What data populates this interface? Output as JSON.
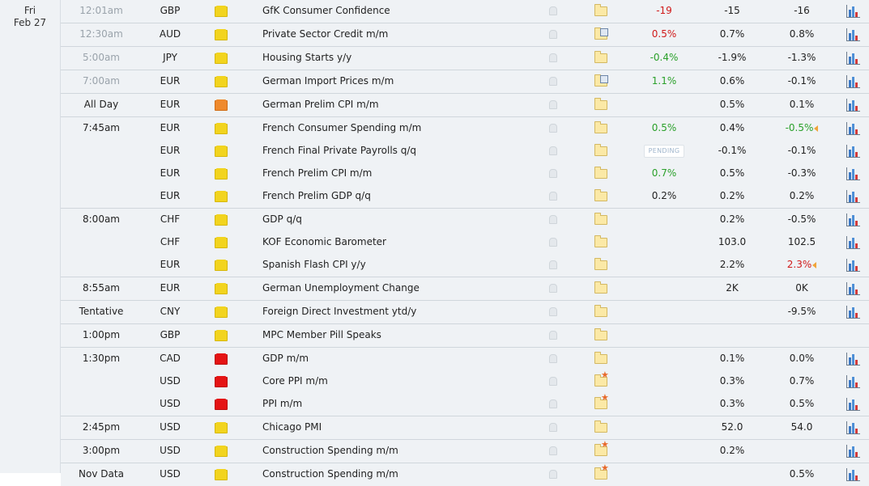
{
  "date": {
    "day": "Fri",
    "date": "Feb 27"
  },
  "colors": {
    "positive": "#2aa02a",
    "negative": "#d01a1a",
    "pending_text": "#9fb5cc",
    "background": "#eff2f5"
  },
  "events": [
    {
      "time": "12:01am",
      "time_past": true,
      "currency": "GBP",
      "impact": "low",
      "event": "GfK Consumer Confidence",
      "note_icon": "folder-icon",
      "actual": "-19",
      "actual_color": "red",
      "forecast": "-15",
      "previous": "-16",
      "previous_color": "dark",
      "revised": false,
      "separator": false
    },
    {
      "time": "12:30am",
      "time_past": true,
      "currency": "AUD",
      "impact": "low",
      "event": "Private Sector Credit m/m",
      "note_icon": "folder-doc-icon",
      "actual": "0.5%",
      "actual_color": "red",
      "forecast": "0.7%",
      "previous": "0.8%",
      "previous_color": "dark",
      "revised": false,
      "separator": true
    },
    {
      "time": "5:00am",
      "time_past": true,
      "currency": "JPY",
      "impact": "low",
      "event": "Housing Starts y/y",
      "note_icon": "folder-icon",
      "actual": "-0.4%",
      "actual_color": "green",
      "forecast": "-1.9%",
      "previous": "-1.3%",
      "previous_color": "dark",
      "revised": false,
      "separator": true
    },
    {
      "time": "7:00am",
      "time_past": true,
      "currency": "EUR",
      "impact": "low",
      "event": "German Import Prices m/m",
      "note_icon": "folder-doc-icon",
      "actual": "1.1%",
      "actual_color": "green",
      "forecast": "0.6%",
      "previous": "-0.1%",
      "previous_color": "dark",
      "revised": false,
      "separator": true
    },
    {
      "time": "All Day",
      "time_past": false,
      "currency": "EUR",
      "impact": "medium",
      "event": "German Prelim CPI m/m",
      "note_icon": "folder-icon",
      "actual": "",
      "actual_color": "dark",
      "forecast": "0.5%",
      "previous": "0.1%",
      "previous_color": "dark",
      "revised": false,
      "separator": true
    },
    {
      "time": "7:45am",
      "time_past": false,
      "currency": "EUR",
      "impact": "low",
      "event": "French Consumer Spending m/m",
      "note_icon": "folder-icon",
      "actual": "0.5%",
      "actual_color": "green",
      "forecast": "0.4%",
      "previous": "-0.5%",
      "previous_color": "green",
      "revised": true,
      "separator": true
    },
    {
      "time": "",
      "time_past": false,
      "currency": "EUR",
      "impact": "low",
      "event": "French Final Private Payrolls q/q",
      "note_icon": "folder-icon",
      "actual": "",
      "actual_color": "dark",
      "pending": "PENDING",
      "forecast": "-0.1%",
      "previous": "-0.1%",
      "previous_color": "dark",
      "revised": false,
      "separator": false
    },
    {
      "time": "",
      "time_past": false,
      "currency": "EUR",
      "impact": "low",
      "event": "French Prelim CPI m/m",
      "note_icon": "folder-icon",
      "actual": "0.7%",
      "actual_color": "green",
      "forecast": "0.5%",
      "previous": "-0.3%",
      "previous_color": "dark",
      "revised": false,
      "separator": false
    },
    {
      "time": "",
      "time_past": false,
      "currency": "EUR",
      "impact": "low",
      "event": "French Prelim GDP q/q",
      "note_icon": "folder-icon",
      "actual": "0.2%",
      "actual_color": "dark",
      "forecast": "0.2%",
      "previous": "0.2%",
      "previous_color": "dark",
      "revised": false,
      "separator": false
    },
    {
      "time": "8:00am",
      "time_past": false,
      "currency": "CHF",
      "impact": "low",
      "event": "GDP q/q",
      "note_icon": "folder-icon",
      "actual": "",
      "actual_color": "dark",
      "forecast": "0.2%",
      "previous": "-0.5%",
      "previous_color": "dark",
      "revised": false,
      "separator": true
    },
    {
      "time": "",
      "time_past": false,
      "currency": "CHF",
      "impact": "low",
      "event": "KOF Economic Barometer",
      "note_icon": "folder-icon",
      "actual": "",
      "actual_color": "dark",
      "forecast": "103.0",
      "previous": "102.5",
      "previous_color": "dark",
      "revised": false,
      "separator": false
    },
    {
      "time": "",
      "time_past": false,
      "currency": "EUR",
      "impact": "low",
      "event": "Spanish Flash CPI y/y",
      "note_icon": "folder-icon",
      "actual": "",
      "actual_color": "dark",
      "forecast": "2.2%",
      "previous": "2.3%",
      "previous_color": "red",
      "revised": true,
      "separator": false
    },
    {
      "time": "8:55am",
      "time_past": false,
      "currency": "EUR",
      "impact": "low",
      "event": "German Unemployment Change",
      "note_icon": "folder-icon",
      "actual": "",
      "actual_color": "dark",
      "forecast": "2K",
      "previous": "0K",
      "previous_color": "dark",
      "revised": false,
      "separator": true
    },
    {
      "time": "Tentative",
      "time_past": false,
      "currency": "CNY",
      "impact": "low",
      "event": "Foreign Direct Investment ytd/y",
      "note_icon": "folder-icon",
      "actual": "",
      "actual_color": "dark",
      "forecast": "",
      "previous": "-9.5%",
      "previous_color": "dark",
      "revised": false,
      "separator": true
    },
    {
      "time": "1:00pm",
      "time_past": false,
      "currency": "GBP",
      "impact": "low",
      "event": "MPC Member Pill Speaks",
      "note_icon": "folder-icon",
      "actual": "",
      "actual_color": "dark",
      "forecast": "",
      "previous": "",
      "previous_color": "dark",
      "revised": false,
      "chart": false,
      "separator": true
    },
    {
      "time": "1:30pm",
      "time_past": false,
      "currency": "CAD",
      "impact": "high",
      "event": "GDP m/m",
      "note_icon": "folder-icon",
      "actual": "",
      "actual_color": "dark",
      "forecast": "0.1%",
      "previous": "0.0%",
      "previous_color": "dark",
      "revised": false,
      "separator": true
    },
    {
      "time": "",
      "time_past": false,
      "currency": "USD",
      "impact": "high",
      "event": "Core PPI m/m",
      "note_icon": "folder-star-icon",
      "actual": "",
      "actual_color": "dark",
      "forecast": "0.3%",
      "previous": "0.7%",
      "previous_color": "dark",
      "revised": false,
      "separator": false
    },
    {
      "time": "",
      "time_past": false,
      "currency": "USD",
      "impact": "high",
      "event": "PPI m/m",
      "note_icon": "folder-star-icon",
      "actual": "",
      "actual_color": "dark",
      "forecast": "0.3%",
      "previous": "0.5%",
      "previous_color": "dark",
      "revised": false,
      "separator": false
    },
    {
      "time": "2:45pm",
      "time_past": false,
      "currency": "USD",
      "impact": "low",
      "event": "Chicago PMI",
      "note_icon": "folder-icon",
      "actual": "",
      "actual_color": "dark",
      "forecast": "52.0",
      "previous": "54.0",
      "previous_color": "dark",
      "revised": false,
      "separator": true
    },
    {
      "time": "3:00pm",
      "time_past": false,
      "currency": "USD",
      "impact": "low",
      "event": "Construction Spending m/m",
      "note_icon": "folder-star-icon",
      "actual": "",
      "actual_color": "dark",
      "forecast": "0.2%",
      "previous": "",
      "previous_color": "dark",
      "revised": false,
      "separator": true
    },
    {
      "time": "Nov Data",
      "time_past": false,
      "currency": "USD",
      "impact": "low",
      "event": "Construction Spending m/m",
      "note_icon": "folder-star-icon",
      "actual": "",
      "actual_color": "dark",
      "forecast": "",
      "previous": "0.5%",
      "previous_color": "dark",
      "revised": false,
      "separator": true
    }
  ]
}
